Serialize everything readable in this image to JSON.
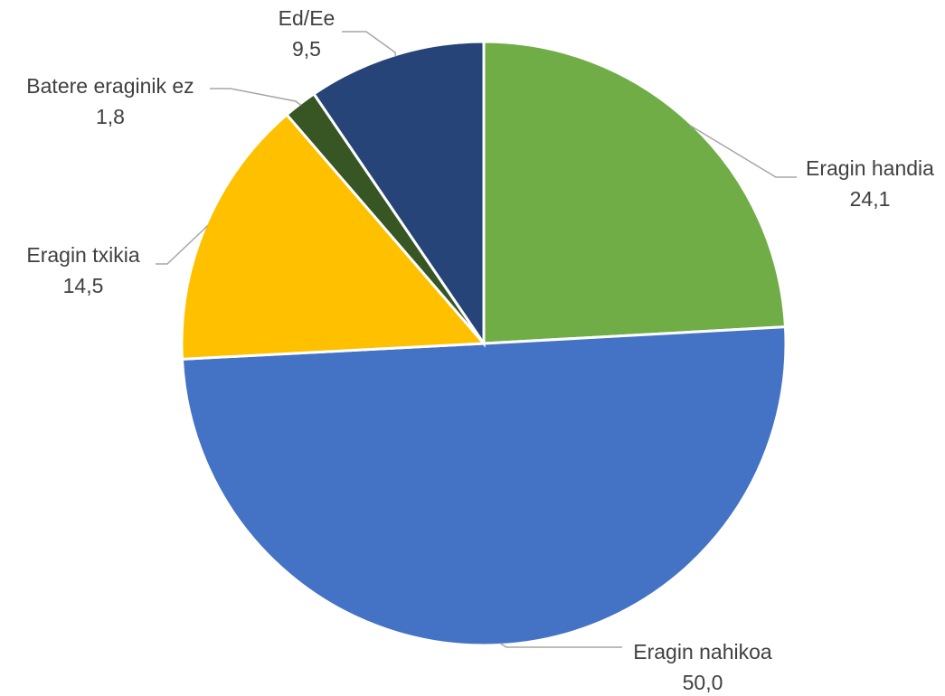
{
  "chart_data": {
    "type": "pie",
    "title": "",
    "start_angle_deg": 0,
    "direction": "clockwise",
    "slices": [
      {
        "label": "Eragin handia",
        "value_label": "24,1",
        "value": 24.1,
        "color": "#70ad47"
      },
      {
        "label": "Eragin nahikoa",
        "value_label": "50,0",
        "value": 50.0,
        "color": "#4472c4"
      },
      {
        "label": "Eragin txikia",
        "value_label": "14,5",
        "value": 14.5,
        "color": "#ffc000"
      },
      {
        "label": "Batere eraginik ez",
        "value_label": "1,8",
        "value": 1.8,
        "color": "#375623"
      },
      {
        "label": "Ed/Ee",
        "value_label": "9,5",
        "value": 9.5,
        "color": "#264478"
      }
    ],
    "data_labels": "outside-with-leader-lines",
    "legend": "none"
  }
}
